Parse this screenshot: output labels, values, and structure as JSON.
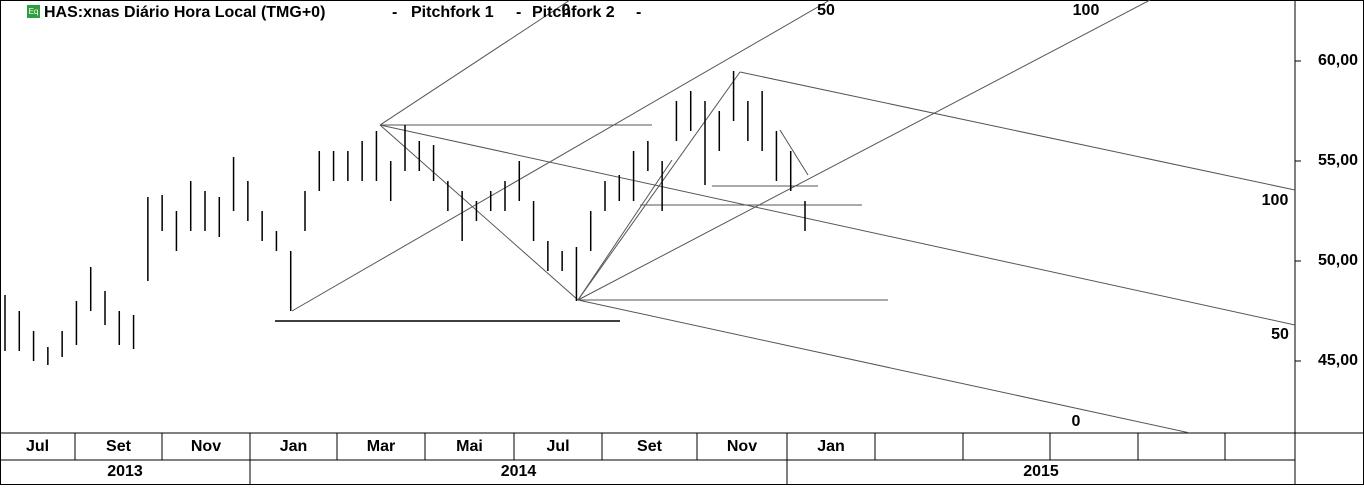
{
  "chart_data": {
    "type": "ohlc",
    "title": "HAS:xnas Diário Hora Local (TMG+0)",
    "indicators": [
      "Pitchfork 1",
      "Pitchfork 2"
    ],
    "separator": "-",
    "badge": "Eq",
    "months": [
      "Jul",
      "Set",
      "Nov",
      "Jan",
      "Mar",
      "Mai",
      "Jul",
      "Set",
      "Nov",
      "Jan",
      null,
      null,
      null,
      null,
      null
    ],
    "years": [
      "2013",
      "2014",
      "2015"
    ],
    "series": [
      {
        "color": "#000000",
        "high": [
          48.3,
          47.5,
          46.5,
          45.7,
          46.5,
          48.0,
          49.7,
          48.5,
          47.5,
          47.3,
          53.2,
          53.3,
          52.5,
          54.0,
          53.5,
          53.2,
          55.2,
          54.0,
          52.5,
          51.5,
          50.5,
          53.5,
          55.5,
          55.5,
          55.5,
          56.0,
          56.5,
          55.0,
          56.8,
          56.0,
          55.8,
          54.0,
          53.5,
          53.0,
          53.5,
          54.0,
          55.0,
          53.0,
          51.0,
          50.5,
          50.7,
          52.5,
          54.0,
          54.3,
          55.5,
          56.0,
          55.0,
          58.0,
          58.5,
          58.0,
          57.5,
          59.5,
          58.0,
          58.5,
          56.5,
          55.5,
          53.0
        ],
        "low": [
          45.5,
          45.5,
          45.0,
          44.8,
          45.2,
          45.8,
          47.5,
          46.8,
          45.8,
          45.6,
          49.0,
          51.5,
          50.5,
          51.5,
          51.5,
          51.2,
          52.5,
          52.0,
          51.0,
          50.5,
          47.5,
          51.5,
          53.5,
          54.0,
          54.0,
          54.0,
          54.0,
          53.0,
          54.5,
          54.5,
          54.0,
          52.5,
          51.0,
          52.0,
          52.5,
          52.5,
          53.0,
          51.0,
          49.5,
          49.5,
          48.0,
          50.5,
          52.5,
          53.0,
          53.0,
          54.5,
          52.5,
          56.0,
          56.5,
          53.8,
          55.5,
          57.0,
          56.0,
          55.5,
          54.0,
          53.5,
          51.5
        ]
      }
    ],
    "ylim": [
      41.4,
      63.05
    ],
    "yticks": [
      {
        "value": 60,
        "label": "60,00"
      },
      {
        "value": 55,
        "label": "55,00"
      },
      {
        "value": 50,
        "label": "50,00"
      },
      {
        "value": 45,
        "label": "45,00"
      }
    ],
    "pitchfork_labels": [
      "0",
      "50",
      "100",
      "100",
      "50",
      "0"
    ]
  }
}
